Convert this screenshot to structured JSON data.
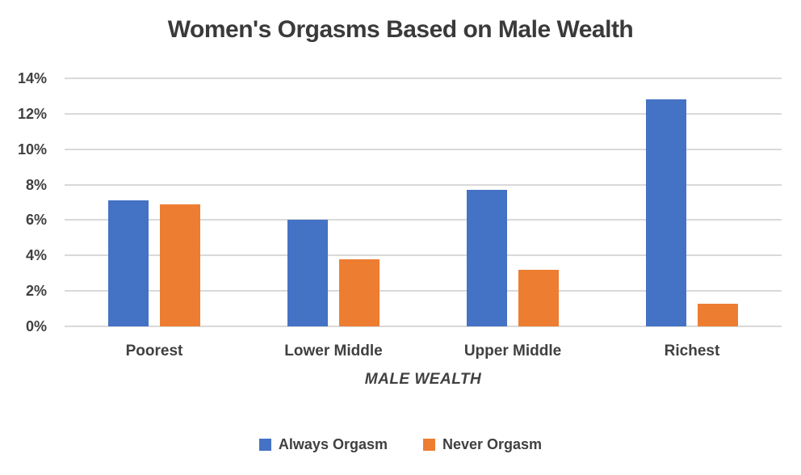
{
  "title": "Women's Orgasms Based on Male Wealth",
  "chart_data": {
    "type": "bar",
    "title": "Women's Orgasms Based on Male Wealth",
    "categories": [
      "Poorest",
      "Lower Middle",
      "Upper Middle",
      "Richest"
    ],
    "series": [
      {
        "name": "Always Orgasm",
        "color": "#4472C4",
        "values": [
          7.1,
          6.0,
          7.7,
          12.8
        ]
      },
      {
        "name": "Never Orgasm",
        "color": "#ED7D31",
        "values": [
          6.9,
          3.8,
          3.2,
          1.3
        ]
      }
    ],
    "xlabel": "MALE WEALTH",
    "ylabel": "",
    "ylim": [
      0,
      14
    ],
    "ytick_step": 2,
    "ytick_labels": [
      "0%",
      "2%",
      "4%",
      "6%",
      "8%",
      "10%",
      "12%",
      "14%"
    ],
    "grid": true,
    "legend_position": "bottom",
    "value_suffix": "%"
  },
  "colors": {
    "background": "#FFFFFF",
    "title_text": "#3A3A3A",
    "axis_text": "#404040",
    "gridline": "#D9D9D9",
    "series_blue": "#4472C4",
    "series_orange": "#ED7D31"
  }
}
